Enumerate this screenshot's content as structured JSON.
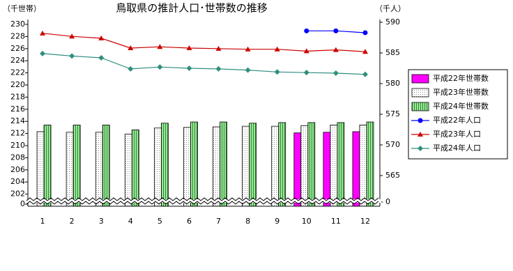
{
  "chart_data": {
    "type": "bar_line",
    "title": "鳥取県の推計人口･世帯数の推移",
    "y_label": "（千世帯）",
    "y2_label": "（千人）",
    "categories": [
      "1",
      "2",
      "3",
      "4",
      "5",
      "6",
      "7",
      "8",
      "9",
      "10",
      "11",
      "12"
    ],
    "ylim": [
      0,
      230
    ],
    "yticks": [
      0,
      202,
      204,
      206,
      208,
      210,
      212,
      214,
      216,
      218,
      220,
      222,
      224,
      226,
      228,
      230
    ],
    "y2lim": [
      0,
      590
    ],
    "y2ticks": [
      0,
      565,
      570,
      575,
      580,
      585,
      590
    ],
    "axis_break": true,
    "legend": "right",
    "series": [
      {
        "name": "平成22年世帯数",
        "kind": "bar",
        "color": "#ff00ff",
        "pattern": "solid",
        "values": [
          null,
          null,
          null,
          null,
          null,
          null,
          null,
          null,
          null,
          212.1,
          212.2,
          212.3
        ]
      },
      {
        "name": "平成23年世帯数",
        "kind": "bar",
        "color": "#ffffff",
        "pattern": "dots",
        "values": [
          212.3,
          212.2,
          212.2,
          211.9,
          212.9,
          213.0,
          213.1,
          213.2,
          213.2,
          213.3,
          213.4,
          213.4
        ]
      },
      {
        "name": "平成24年世帯数",
        "kind": "bar",
        "color": "#99e699",
        "pattern": "stripes",
        "values": [
          213.4,
          213.4,
          213.4,
          212.6,
          213.7,
          213.9,
          213.9,
          213.7,
          213.8,
          213.8,
          213.8,
          213.9
        ]
      },
      {
        "name": "平成22年人口",
        "kind": "line",
        "axis": "y2",
        "color": "#0000ff",
        "marker": "circle",
        "values": [
          null,
          null,
          null,
          null,
          null,
          null,
          null,
          null,
          null,
          588.6,
          588.6,
          588.3
        ]
      },
      {
        "name": "平成23年人口",
        "kind": "line",
        "axis": "y2",
        "color": "#cc0000",
        "marker": "triangle",
        "values": [
          588.2,
          587.7,
          587.4,
          585.8,
          586.0,
          585.8,
          585.7,
          585.6,
          585.6,
          585.3,
          585.5,
          585.2
        ]
      },
      {
        "name": "平成24年人口",
        "kind": "line",
        "axis": "y2",
        "color": "#2f8f7f",
        "marker": "diamond",
        "values": [
          584.9,
          584.5,
          584.2,
          582.4,
          582.7,
          582.5,
          582.4,
          582.2,
          581.9,
          581.8,
          581.7,
          581.5
        ]
      }
    ]
  }
}
